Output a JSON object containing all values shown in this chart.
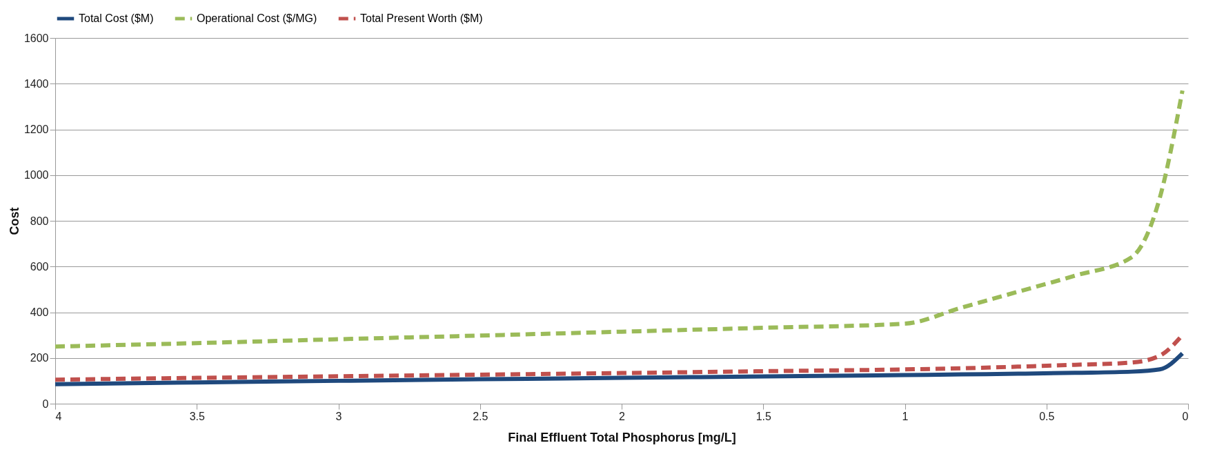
{
  "chart_data": {
    "type": "line",
    "xlabel": "Final Effluent Total Phosphorus  [mg/L]",
    "ylabel": "Cost",
    "x": [
      4,
      3.5,
      3,
      2.5,
      2,
      1.5,
      1,
      0.8,
      0.6,
      0.4,
      0.2,
      0.1,
      0.02
    ],
    "series": [
      {
        "name": "Total Cost ($M)",
        "color": "#1f497d",
        "line_style": "solid",
        "values": [
          85,
          93,
          100,
          107,
          113,
          119,
          125,
          128,
          131,
          135,
          140,
          150,
          220
        ]
      },
      {
        "name": "Operational Cost ($/MG)",
        "color": "#9bbb59",
        "line_style": "dashed",
        "values": [
          250,
          265,
          282,
          298,
          315,
          332,
          350,
          420,
          490,
          560,
          640,
          900,
          1370
        ]
      },
      {
        "name": "Total Present Worth ($M)",
        "color": "#c0504d",
        "line_style": "dashed",
        "values": [
          105,
          113,
          120,
          127,
          134,
          142,
          150,
          155,
          162,
          170,
          180,
          210,
          300
        ]
      }
    ],
    "xlim": [
      4,
      0
    ],
    "xticks": [
      4,
      3.5,
      3,
      2.5,
      2,
      1.5,
      1,
      0.5,
      0
    ],
    "ylim": [
      0,
      1600
    ],
    "yticks": [
      0,
      200,
      400,
      600,
      800,
      1000,
      1200,
      1400,
      1600
    ],
    "grid": "y",
    "legend": "top",
    "marker": "none"
  }
}
